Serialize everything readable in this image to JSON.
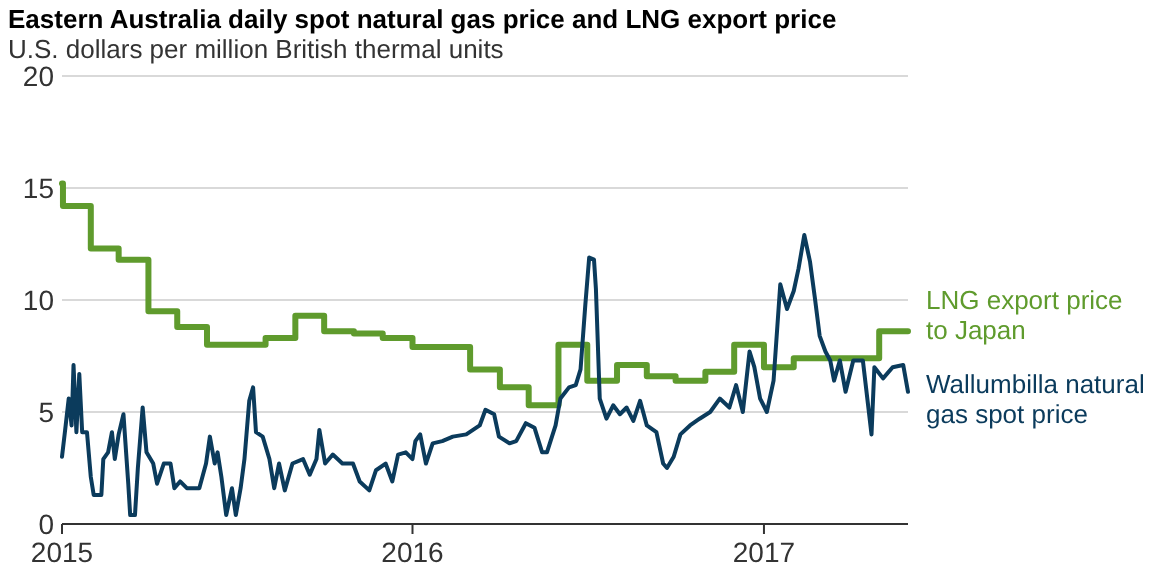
{
  "chart_data": {
    "type": "line",
    "title": "Eastern Australia daily spot natural gas price and LNG export price",
    "subtitle": "U.S. dollars per million British thermal units",
    "xlim": [
      "2015-01-01",
      "2017-05-31"
    ],
    "xticks": [
      "2015",
      "2016",
      "2017"
    ],
    "ylim": [
      0,
      20
    ],
    "yticks": [
      0,
      5,
      10,
      15,
      20
    ],
    "grid": "y",
    "legend": false,
    "series": [
      {
        "name": "LNG export price to Japan",
        "type": "step",
        "color": "#5f9b2d",
        "x": [
          "2015-01-01",
          "2015-01-02",
          "2015-01-31",
          "2015-03-01",
          "2015-04-01",
          "2015-05-01",
          "2015-06-01",
          "2015-08-01",
          "2015-09-01",
          "2015-10-01",
          "2015-11-01",
          "2015-12-01",
          "2016-01-01",
          "2016-03-01",
          "2016-04-01",
          "2016-05-01",
          "2016-06-01",
          "2016-07-01",
          "2016-08-01",
          "2016-09-01",
          "2016-10-01",
          "2016-11-01",
          "2016-12-01",
          "2017-01-01",
          "2017-02-01",
          "2017-03-01",
          "2017-05-01",
          "2017-05-31"
        ],
        "values": [
          15.2,
          14.2,
          12.3,
          11.8,
          9.5,
          8.8,
          8.0,
          8.3,
          9.3,
          8.6,
          8.5,
          8.3,
          7.9,
          6.9,
          6.1,
          5.3,
          8.0,
          6.4,
          7.1,
          6.6,
          6.4,
          6.8,
          8.0,
          7.0,
          7.4,
          7.4,
          8.6,
          8.6
        ]
      },
      {
        "name": "Wallumbilla natural gas spot price",
        "color": "#0b3b5c",
        "x": [
          "2015-01-01",
          "2015-01-04",
          "2015-01-08",
          "2015-01-11",
          "2015-01-13",
          "2015-01-16",
          "2015-01-19",
          "2015-01-22",
          "2015-01-27",
          "2015-01-31",
          "2015-02-03",
          "2015-02-11",
          "2015-02-13",
          "2015-02-18",
          "2015-02-22",
          "2015-02-25",
          "2015-03-01",
          "2015-03-06",
          "2015-03-11",
          "2015-03-13",
          "2015-03-18",
          "2015-03-21",
          "2015-03-26",
          "2015-03-30",
          "2015-04-06",
          "2015-04-10",
          "2015-04-17",
          "2015-04-24",
          "2015-04-28",
          "2015-05-04",
          "2015-05-11",
          "2015-05-24",
          "2015-05-31",
          "2015-06-04",
          "2015-06-09",
          "2015-06-12",
          "2015-06-16",
          "2015-06-21",
          "2015-06-27",
          "2015-07-01",
          "2015-07-06",
          "2015-07-10",
          "2015-07-15",
          "2015-07-19",
          "2015-07-22",
          "2015-07-29",
          "2015-08-05",
          "2015-08-10",
          "2015-08-15",
          "2015-08-21",
          "2015-08-29",
          "2015-09-09",
          "2015-09-16",
          "2015-09-23",
          "2015-09-26",
          "2015-10-02",
          "2015-10-10",
          "2015-10-20",
          "2015-10-31",
          "2015-11-07",
          "2015-11-17",
          "2015-11-24",
          "2015-12-04",
          "2015-12-11",
          "2015-12-17",
          "2015-12-25",
          "2016-01-01",
          "2016-01-04",
          "2016-01-09",
          "2016-01-15",
          "2016-01-22",
          "2016-02-01",
          "2016-02-12",
          "2016-02-26",
          "2016-03-11",
          "2016-03-17",
          "2016-03-26",
          "2016-03-31",
          "2016-04-11",
          "2016-04-18",
          "2016-04-28",
          "2016-05-07",
          "2016-05-15",
          "2016-05-20",
          "2016-05-29",
          "2016-06-03",
          "2016-06-12",
          "2016-06-19",
          "2016-06-24",
          "2016-06-29",
          "2016-07-03",
          "2016-07-08",
          "2016-07-10",
          "2016-07-14",
          "2016-07-21",
          "2016-07-28",
          "2016-08-04",
          "2016-08-11",
          "2016-08-18",
          "2016-08-25",
          "2016-09-01",
          "2016-09-11",
          "2016-09-18",
          "2016-09-22",
          "2016-09-29",
          "2016-10-06",
          "2016-10-16",
          "2016-10-26",
          "2016-11-06",
          "2016-11-16",
          "2016-11-26",
          "2016-12-03",
          "2016-12-10",
          "2016-12-17",
          "2016-12-22",
          "2016-12-28",
          "2017-01-04",
          "2017-01-11",
          "2017-01-18",
          "2017-01-25",
          "2017-02-01",
          "2017-02-06",
          "2017-02-12",
          "2017-02-18",
          "2017-02-23",
          "2017-02-28",
          "2017-03-06",
          "2017-03-11",
          "2017-03-15",
          "2017-03-21",
          "2017-03-27",
          "2017-04-04",
          "2017-04-14",
          "2017-04-23",
          "2017-04-26",
          "2017-05-05",
          "2017-05-15",
          "2017-05-26",
          "2017-05-31"
        ],
        "values": [
          3.0,
          4.1,
          5.6,
          4.4,
          7.1,
          4.1,
          6.7,
          4.1,
          4.1,
          2.1,
          1.3,
          1.3,
          2.9,
          3.2,
          4.1,
          2.9,
          4.0,
          4.9,
          1.8,
          0.4,
          0.4,
          2.5,
          5.2,
          3.2,
          2.7,
          1.8,
          2.7,
          2.7,
          1.6,
          1.9,
          1.6,
          1.6,
          2.7,
          3.9,
          2.7,
          3.2,
          2.1,
          0.4,
          1.6,
          0.4,
          1.6,
          2.9,
          5.5,
          6.1,
          4.1,
          3.9,
          2.9,
          1.6,
          2.7,
          1.5,
          2.7,
          2.9,
          2.2,
          2.9,
          4.2,
          2.7,
          3.1,
          2.7,
          2.7,
          1.9,
          1.5,
          2.4,
          2.7,
          1.9,
          3.1,
          3.2,
          2.9,
          3.7,
          4.0,
          2.7,
          3.6,
          3.7,
          3.9,
          4.0,
          4.4,
          5.1,
          4.9,
          3.9,
          3.6,
          3.7,
          4.5,
          4.3,
          3.2,
          3.2,
          4.4,
          5.6,
          6.1,
          6.2,
          6.9,
          9.8,
          11.9,
          11.8,
          10.5,
          5.6,
          4.7,
          5.3,
          4.9,
          5.2,
          4.6,
          5.5,
          4.4,
          4.1,
          2.7,
          2.5,
          3.0,
          4.0,
          4.4,
          4.7,
          5.0,
          5.6,
          5.2,
          6.2,
          5.0,
          7.7,
          7.0,
          5.6,
          5.0,
          6.4,
          10.7,
          9.6,
          10.4,
          11.4,
          12.9,
          11.7,
          10.1,
          8.4,
          7.7,
          7.3,
          6.4,
          7.3,
          5.9,
          7.3,
          7.3,
          4.0,
          7.0,
          6.5,
          7.0,
          7.1,
          5.9
        ]
      }
    ]
  }
}
